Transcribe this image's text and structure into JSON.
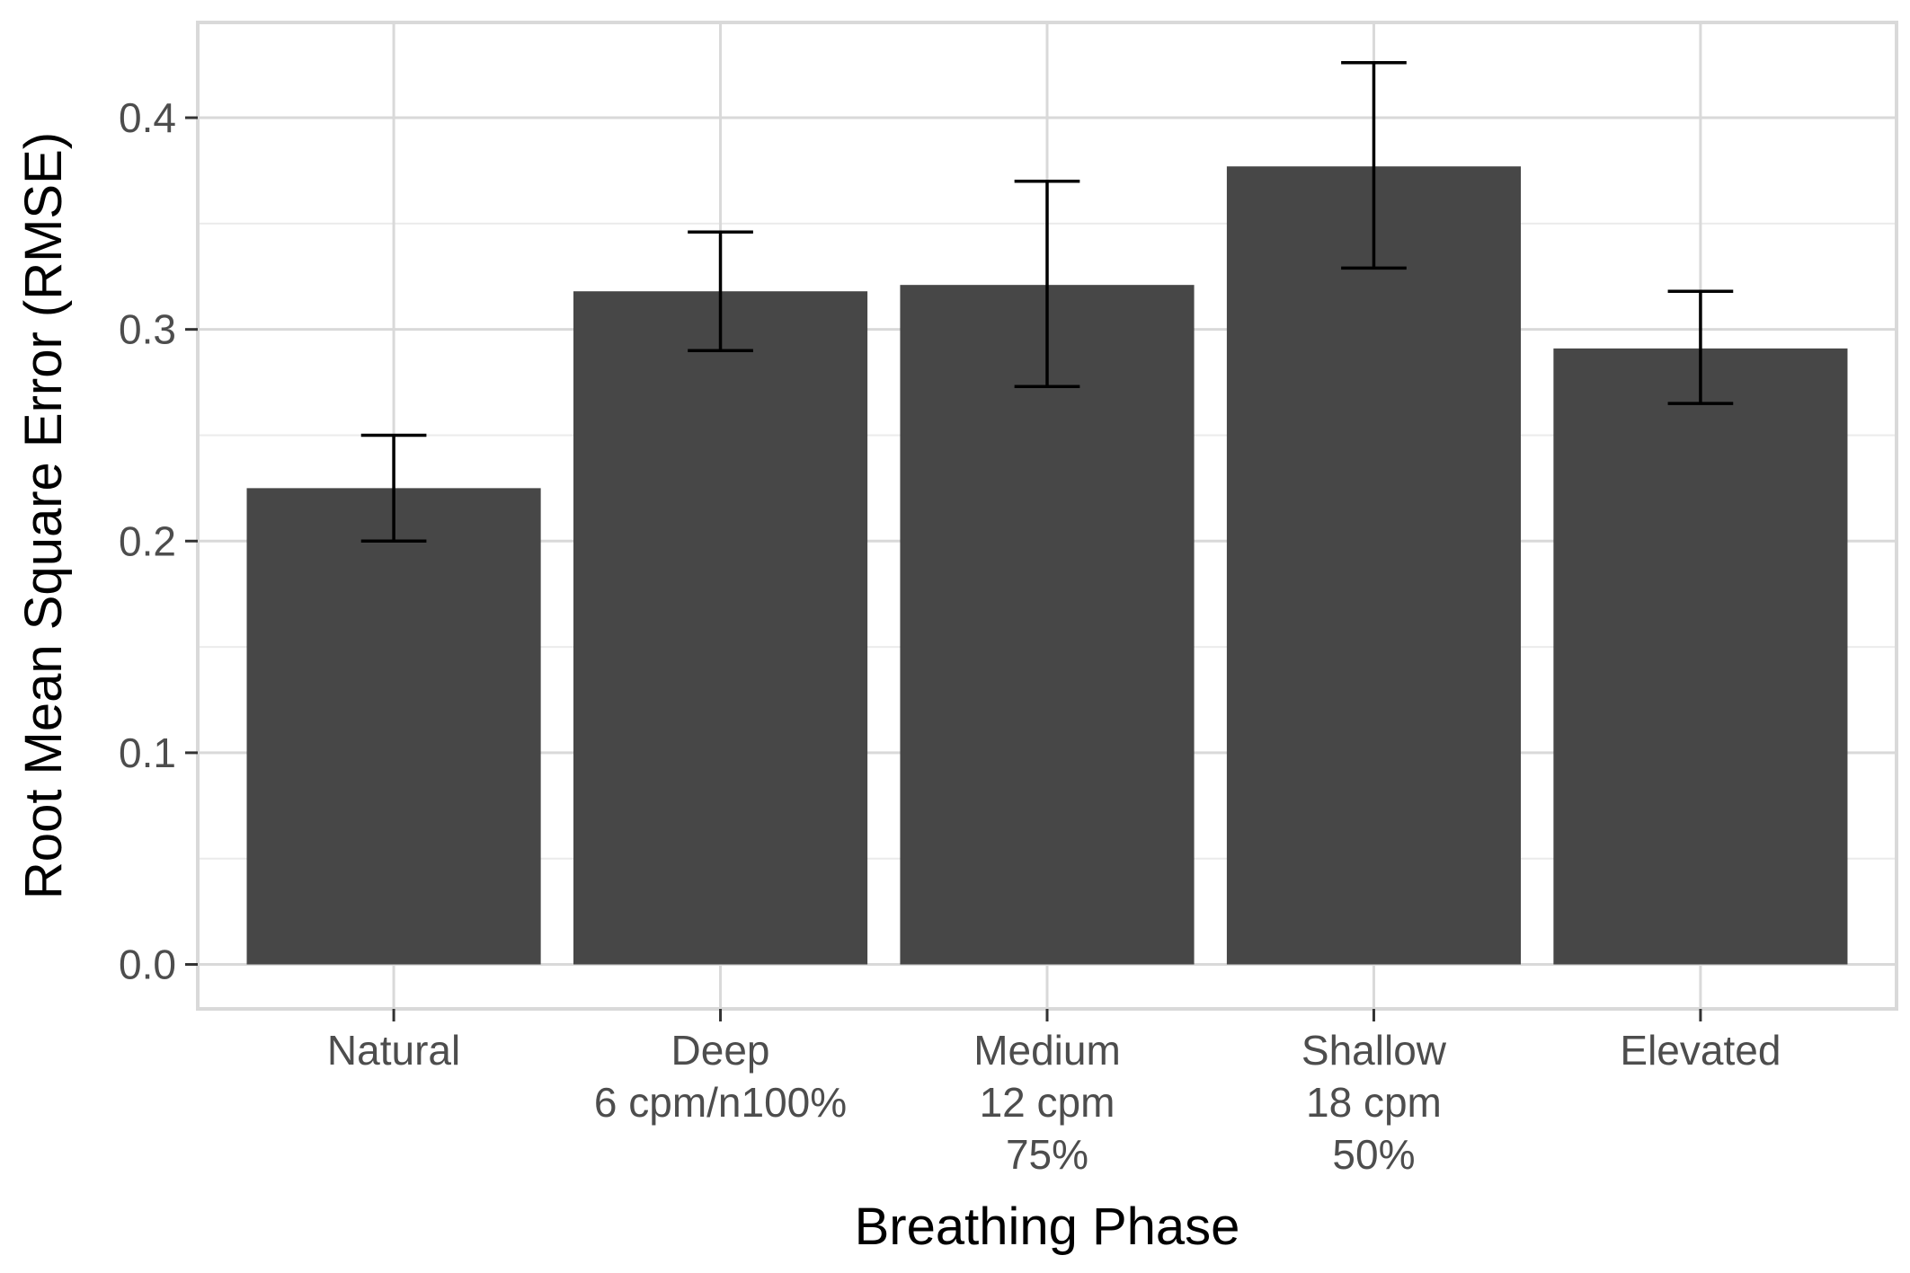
{
  "chart_data": {
    "type": "bar",
    "title": "",
    "xlabel": "Breathing Phase",
    "ylabel": "Root Mean Square Error (RMSE)",
    "categories": [
      [
        "Natural"
      ],
      [
        "Deep",
        "6 cpm/n100%"
      ],
      [
        "Medium",
        "12 cpm",
        "75%"
      ],
      [
        "Shallow",
        "18 cpm",
        "50%"
      ],
      [
        "Elevated"
      ]
    ],
    "values": [
      0.225,
      0.318,
      0.321,
      0.377,
      0.291
    ],
    "error_low": [
      0.2,
      0.29,
      0.273,
      0.329,
      0.265
    ],
    "error_high": [
      0.25,
      0.346,
      0.37,
      0.426,
      0.318
    ],
    "ylim": [
      -0.021,
      0.445
    ],
    "yticks": [
      0.0,
      0.1,
      0.2,
      0.3,
      0.4
    ],
    "ytick_labels": [
      "0.0",
      "0.1",
      "0.2",
      "0.3",
      "0.4"
    ],
    "grid": true,
    "legend": "none",
    "colors": {
      "bar": "#474747",
      "errorbar": "#000000",
      "grid_major": "#d9d9d9",
      "grid_minor": "#ebebeb",
      "panel_border": "#d9d9d9"
    }
  }
}
